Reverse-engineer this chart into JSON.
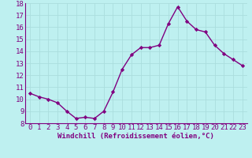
{
  "x": [
    0,
    1,
    2,
    3,
    4,
    5,
    6,
    7,
    8,
    9,
    10,
    11,
    12,
    13,
    14,
    15,
    16,
    17,
    18,
    19,
    20,
    21,
    22,
    23
  ],
  "y": [
    10.5,
    10.2,
    10.0,
    9.7,
    9.0,
    8.4,
    8.5,
    8.4,
    9.0,
    10.6,
    12.5,
    13.7,
    14.3,
    14.3,
    14.5,
    16.3,
    17.7,
    16.5,
    15.8,
    15.6,
    14.5,
    13.8,
    13.3,
    12.8
  ],
  "line_color": "#800080",
  "marker": "D",
  "marker_size": 2.2,
  "line_width": 1.0,
  "bg_color": "#bef0f0",
  "grid_color": "#aadddd",
  "xlabel": "Windchill (Refroidissement éolien,°C)",
  "ylabel": "",
  "title": "",
  "xlim": [
    -0.5,
    23.5
  ],
  "ylim": [
    8,
    18
  ],
  "yticks": [
    8,
    9,
    10,
    11,
    12,
    13,
    14,
    15,
    16,
    17,
    18
  ],
  "xticks": [
    0,
    1,
    2,
    3,
    4,
    5,
    6,
    7,
    8,
    9,
    10,
    11,
    12,
    13,
    14,
    15,
    16,
    17,
    18,
    19,
    20,
    21,
    22,
    23
  ],
  "xlabel_fontsize": 6.5,
  "tick_fontsize": 6.5,
  "tick_color": "#800080",
  "spine_color": "#800080"
}
